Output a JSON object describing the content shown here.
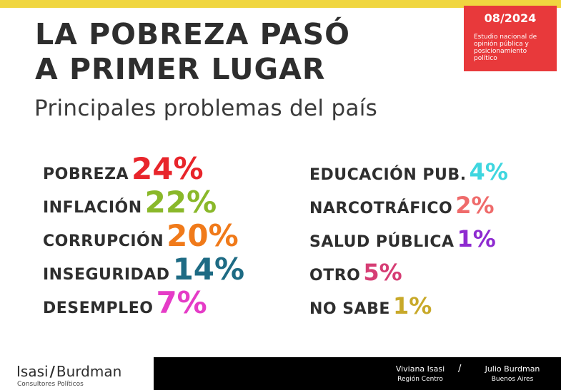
{
  "header": {
    "title_line1": "LA POBREZA PASÓ",
    "title_line2": "A PRIMER LUGAR",
    "subtitle": "Principales problemas del país"
  },
  "badge": {
    "date": "08/2024",
    "study": "Estudio nacional de opinión pública y posicionamiento político",
    "bg_color": "#e8393b"
  },
  "problems_left": [
    {
      "label": "POBREZA",
      "value": "24%",
      "color": "#e8252b"
    },
    {
      "label": "INFLACIÓN",
      "value": "22%",
      "color": "#8ab82a"
    },
    {
      "label": "CORRUPCIÓN",
      "value": "20%",
      "color": "#f07a1a"
    },
    {
      "label": "INSEGURIDAD",
      "value": "14%",
      "color": "#1e6b84"
    },
    {
      "label": "DESEMPLEO",
      "value": "7%",
      "color": "#e53cc7"
    }
  ],
  "problems_right": [
    {
      "label": "EDUCACIÓN PUB.",
      "value": "4%",
      "color": "#3fd6df"
    },
    {
      "label": "NARCOTRÁFICO",
      "value": "2%",
      "color": "#ef6b6b"
    },
    {
      "label": "SALUD PÚBLICA",
      "value": "1%",
      "color": "#8e2bd0"
    },
    {
      "label": "OTRO",
      "value": "5%",
      "color": "#d63d74"
    },
    {
      "label": "NO SABE",
      "value": "1%",
      "color": "#c8a92a"
    }
  ],
  "footer": {
    "brand_left": "Isasi",
    "brand_sep": "/",
    "brand_right": "Burdman",
    "brand_sub": "Consultores Políticos",
    "person1_name": "Viviana Isasi",
    "person1_region": "Región Centro",
    "separator": "/",
    "person2_name": "Julio Burdman",
    "person2_region": "Buenos Aires"
  },
  "colors": {
    "accent_bar": "#f0d640",
    "footer_bg": "#000000"
  }
}
